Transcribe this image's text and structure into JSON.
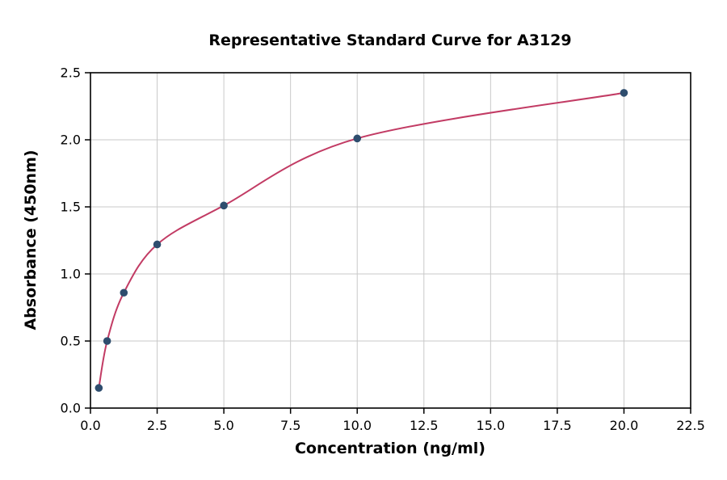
{
  "chart_data": {
    "type": "scatter",
    "title": "Representative Standard Curve for A3129",
    "xlabel": "Concentration (ng/ml)",
    "ylabel": "Absorbance (450nm)",
    "xlim": [
      0,
      22.5
    ],
    "ylim": [
      0,
      2.5
    ],
    "grid": true,
    "grid_color": "#c9c9c9",
    "axis_color": "#000000",
    "background_color": "#ffffff",
    "x_ticks": [
      0.0,
      2.5,
      5.0,
      7.5,
      10.0,
      12.5,
      15.0,
      17.5,
      20.0,
      22.5
    ],
    "x_tick_labels": [
      "0.0",
      "2.5",
      "5.0",
      "7.5",
      "10.0",
      "12.5",
      "15.0",
      "17.5",
      "20.0",
      "22.5"
    ],
    "y_ticks": [
      0.0,
      0.5,
      1.0,
      1.5,
      2.0,
      2.5
    ],
    "y_tick_labels": [
      "0.0",
      "0.5",
      "1.0",
      "1.5",
      "2.0",
      "2.5"
    ],
    "series": [
      {
        "name": "standard-curve",
        "marker_color": "#2e4d6e",
        "line_color": "#c23b64",
        "x": [
          0.313,
          0.625,
          1.25,
          2.5,
          5,
          10,
          20
        ],
        "y": [
          0.15,
          0.5,
          0.86,
          1.22,
          1.51,
          2.01,
          2.35
        ]
      }
    ]
  }
}
